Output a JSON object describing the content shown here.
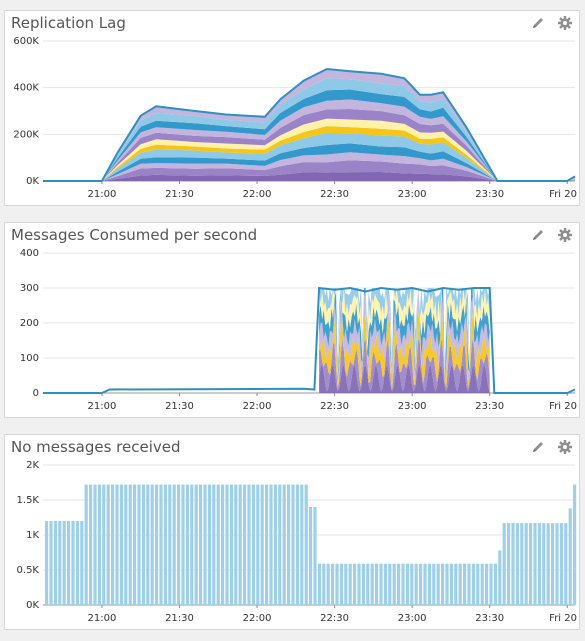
{
  "colors": {
    "blue": "#3399cc",
    "light_blue": "#8ec9e8",
    "purple": "#9b83c7",
    "light_purple": "#c3b5dd",
    "dark_purple": "#7f67b2",
    "gold": "#f5c518",
    "pale_yellow": "#fff2a8",
    "bar_blue": "#9fd0ea",
    "grid": "#e6e6e6"
  },
  "icons": [
    "pencil-icon",
    "gear-icon"
  ],
  "panels": [
    {
      "title": "Replication Lag"
    },
    {
      "title": "Messages Consumed per second"
    },
    {
      "title": "No messages received"
    }
  ],
  "chart_data": [
    {
      "type": "area",
      "title": "Replication Lag",
      "x_ticks": [
        "21:00",
        "21:30",
        "22:00",
        "22:30",
        "23:00",
        "23:30",
        "Fri 20"
      ],
      "x_tick_pos": [
        21.0,
        21.5,
        22.0,
        22.5,
        23.0,
        23.5,
        24.0
      ],
      "xlim": [
        20.62,
        24.05
      ],
      "y_ticks": [
        "0K",
        "200K",
        "400K",
        "600K"
      ],
      "y_tick_vals": [
        0,
        200000,
        400000,
        600000
      ],
      "ylim": [
        0,
        600000
      ],
      "stacked": true,
      "x": [
        20.62,
        21.0,
        21.1,
        21.25,
        21.35,
        21.6,
        21.8,
        22.05,
        22.15,
        22.3,
        22.45,
        22.6,
        22.8,
        22.95,
        23.05,
        23.12,
        23.2,
        23.35,
        23.55,
        24.0,
        24.05
      ],
      "total": [
        0,
        0,
        120000,
        280000,
        320000,
        300000,
        285000,
        275000,
        350000,
        430000,
        480000,
        470000,
        460000,
        440000,
        370000,
        370000,
        380000,
        230000,
        0,
        0,
        20000
      ],
      "layer_colors": [
        "dark_purple",
        "purple",
        "light_purple",
        "blue",
        "light_blue",
        "gold",
        "pale_yellow",
        "purple",
        "light_purple",
        "blue",
        "light_blue",
        "light_purple"
      ],
      "layer_shares": [
        0.08,
        0.1,
        0.07,
        0.08,
        0.1,
        0.06,
        0.07,
        0.09,
        0.08,
        0.09,
        0.1,
        0.08
      ]
    },
    {
      "type": "area",
      "title": "Messages Consumed per second",
      "x_ticks": [
        "21:00",
        "21:30",
        "22:00",
        "22:30",
        "23:00",
        "23:30",
        "Fri 20"
      ],
      "x_tick_pos": [
        21.0,
        21.5,
        22.0,
        22.5,
        23.0,
        23.5,
        24.0
      ],
      "xlim": [
        20.62,
        24.05
      ],
      "y_ticks": [
        "0",
        "100",
        "200",
        "300",
        "400"
      ],
      "y_tick_vals": [
        0,
        100,
        200,
        300,
        400
      ],
      "ylim": [
        0,
        400
      ],
      "stacked": true,
      "x": [
        20.62,
        20.9,
        21.0,
        21.05,
        22.3,
        22.37,
        22.4,
        22.5,
        22.6,
        22.7,
        22.8,
        22.9,
        23.0,
        23.1,
        23.2,
        23.3,
        23.4,
        23.5,
        23.53,
        23.6,
        24.0,
        24.05
      ],
      "total": [
        0,
        0,
        0,
        10,
        12,
        10,
        300,
        295,
        300,
        290,
        300,
        295,
        300,
        290,
        300,
        295,
        300,
        300,
        0,
        0,
        0,
        10
      ]
    },
    {
      "type": "bar",
      "title": "No messages received",
      "x_ticks": [
        "21:00",
        "21:30",
        "22:00",
        "22:30",
        "23:00",
        "23:30",
        "Fri 20"
      ],
      "x_tick_pos": [
        21.0,
        21.5,
        22.0,
        22.5,
        23.0,
        23.5,
        24.0
      ],
      "xlim": [
        20.62,
        24.05
      ],
      "y_ticks": [
        "0K",
        "0.5K",
        "1K",
        "1.5K",
        "2K"
      ],
      "y_tick_vals": [
        0,
        500,
        1000,
        1500,
        2000
      ],
      "ylim": [
        0,
        2000
      ],
      "segments": [
        {
          "from": 20.62,
          "to": 20.88,
          "value": 1200
        },
        {
          "from": 20.88,
          "to": 22.33,
          "value": 1720
        },
        {
          "from": 22.33,
          "to": 22.37,
          "value": 1400
        },
        {
          "from": 22.37,
          "to": 23.53,
          "value": 590
        },
        {
          "from": 23.53,
          "to": 23.57,
          "value": 780
        },
        {
          "from": 23.57,
          "to": 24.0,
          "value": 1170
        },
        {
          "from": 24.0,
          "to": 24.03,
          "value": 1380
        },
        {
          "from": 24.03,
          "to": 24.05,
          "value": 1720
        }
      ]
    }
  ]
}
